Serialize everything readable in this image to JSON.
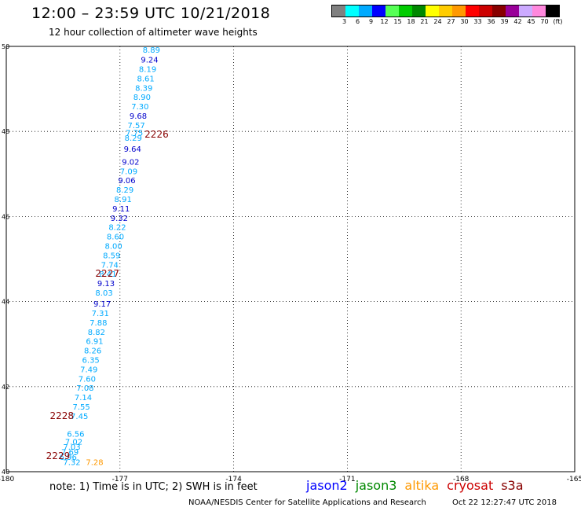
{
  "header": {
    "title": "12:00 – 23:59 UTC 10/21/2018",
    "subtitle": "12 hour collection of altimeter wave heights"
  },
  "legend": {
    "swatches": [
      "#808080",
      "#00ffff",
      "#00aaff",
      "#0000ff",
      "#55ff55",
      "#00cc00",
      "#008800",
      "#ffff00",
      "#ffcc00",
      "#ff9900",
      "#ff0000",
      "#cc0000",
      "#880000",
      "#990099",
      "#ccaaff",
      "#ff88dd",
      "#000000"
    ],
    "labels": [
      "3",
      "6",
      "9",
      "12",
      "15",
      "18",
      "21",
      "24",
      "27",
      "30",
      "33",
      "36",
      "39",
      "42",
      "45",
      "70",
      "(ft)"
    ]
  },
  "map": {
    "lon_range": [
      -180,
      -165
    ],
    "lat_range": [
      40,
      50
    ],
    "lon_ticks": [
      "-180",
      "-177",
      "-174",
      "-171",
      "-168",
      "-165"
    ],
    "lat_ticks": [
      "50",
      "48",
      "46",
      "44",
      "42",
      "40"
    ],
    "gridlines": true
  },
  "measurements": [
    {
      "v": "8.89",
      "c": "#00aaff",
      "lon": -176.4,
      "lat": 49.85
    },
    {
      "v": "9.24",
      "c": "#0000cc",
      "lon": -176.45,
      "lat": 49.62
    },
    {
      "v": "8.19",
      "c": "#00aaff",
      "lon": -176.5,
      "lat": 49.4
    },
    {
      "v": "8.61",
      "c": "#00aaff",
      "lon": -176.55,
      "lat": 49.18
    },
    {
      "v": "8.39",
      "c": "#00aaff",
      "lon": -176.6,
      "lat": 48.96
    },
    {
      "v": "8.90",
      "c": "#00aaff",
      "lon": -176.65,
      "lat": 48.74
    },
    {
      "v": "7.30",
      "c": "#00aaff",
      "lon": -176.7,
      "lat": 48.52
    },
    {
      "v": "9.68",
      "c": "#0000cc",
      "lon": -176.75,
      "lat": 48.3
    },
    {
      "v": "7.57",
      "c": "#00aaff",
      "lon": -176.8,
      "lat": 48.08
    },
    {
      "v": "7.75",
      "c": "#00aaff",
      "lon": -176.85,
      "lat": 47.9
    },
    {
      "v": "8.29",
      "c": "#00aaff",
      "lon": -176.88,
      "lat": 47.78
    },
    {
      "v": "9.64",
      "c": "#0000cc",
      "lon": -176.9,
      "lat": 47.52
    },
    {
      "v": "9.02",
      "c": "#0000cc",
      "lon": -176.95,
      "lat": 47.22
    },
    {
      "v": "7.09",
      "c": "#00aaff",
      "lon": -177.0,
      "lat": 47.0
    },
    {
      "v": "9.06",
      "c": "#0000cc",
      "lon": -177.05,
      "lat": 46.78
    },
    {
      "v": "8.29",
      "c": "#00aaff",
      "lon": -177.1,
      "lat": 46.56
    },
    {
      "v": "8.91",
      "c": "#00aaff",
      "lon": -177.15,
      "lat": 46.34
    },
    {
      "v": "9.11",
      "c": "#0000cc",
      "lon": -177.2,
      "lat": 46.12
    },
    {
      "v": "9.32",
      "c": "#0000cc",
      "lon": -177.25,
      "lat": 45.9
    },
    {
      "v": "8.22",
      "c": "#00aaff",
      "lon": -177.3,
      "lat": 45.68
    },
    {
      "v": "8.60",
      "c": "#00aaff",
      "lon": -177.35,
      "lat": 45.46
    },
    {
      "v": "8.00",
      "c": "#00aaff",
      "lon": -177.4,
      "lat": 45.24
    },
    {
      "v": "8.59",
      "c": "#00aaff",
      "lon": -177.45,
      "lat": 45.02
    },
    {
      "v": "7.74",
      "c": "#00aaff",
      "lon": -177.5,
      "lat": 44.8
    },
    {
      "v": "8.41",
      "c": "#00aaff",
      "lon": -177.55,
      "lat": 44.58
    },
    {
      "v": "9.13",
      "c": "#0000cc",
      "lon": -177.6,
      "lat": 44.36
    },
    {
      "v": "8.03",
      "c": "#00aaff",
      "lon": -177.65,
      "lat": 44.14
    },
    {
      "v": "9.17",
      "c": "#0000cc",
      "lon": -177.7,
      "lat": 43.88
    },
    {
      "v": "7.31",
      "c": "#00aaff",
      "lon": -177.75,
      "lat": 43.66
    },
    {
      "v": "7.88",
      "c": "#00aaff",
      "lon": -177.8,
      "lat": 43.44
    },
    {
      "v": "8.82",
      "c": "#00aaff",
      "lon": -177.85,
      "lat": 43.22
    },
    {
      "v": "6.91",
      "c": "#00aaff",
      "lon": -177.9,
      "lat": 43.0
    },
    {
      "v": "8.26",
      "c": "#00aaff",
      "lon": -177.95,
      "lat": 42.78
    },
    {
      "v": "6.35",
      "c": "#00aaff",
      "lon": -178.0,
      "lat": 42.56
    },
    {
      "v": "7.49",
      "c": "#00aaff",
      "lon": -178.05,
      "lat": 42.34
    },
    {
      "v": "7.60",
      "c": "#00aaff",
      "lon": -178.1,
      "lat": 42.12
    },
    {
      "v": "7.08",
      "c": "#00aaff",
      "lon": -178.15,
      "lat": 41.9
    },
    {
      "v": "7.14",
      "c": "#00aaff",
      "lon": -178.2,
      "lat": 41.68
    },
    {
      "v": "7.55",
      "c": "#00aaff",
      "lon": -178.25,
      "lat": 41.46
    },
    {
      "v": "7.45",
      "c": "#00aaff",
      "lon": -178.3,
      "lat": 41.24
    },
    {
      "v": "6.56",
      "c": "#00aaff",
      "lon": -178.4,
      "lat": 40.82
    },
    {
      "v": "7.02",
      "c": "#00aaff",
      "lon": -178.45,
      "lat": 40.64
    },
    {
      "v": "7.03",
      "c": "#00aaff",
      "lon": -178.5,
      "lat": 40.52
    },
    {
      "v": "7.69",
      "c": "#00aaff",
      "lon": -178.55,
      "lat": 40.4
    },
    {
      "v": "6.96",
      "c": "#00aaff",
      "lon": -178.6,
      "lat": 40.28
    },
    {
      "v": "7.32",
      "c": "#00aaff",
      "lon": -178.5,
      "lat": 40.16
    },
    {
      "v": "7.28",
      "c": "#ff9900",
      "lon": -177.9,
      "lat": 40.16
    }
  ],
  "time_labels": [
    {
      "v": "2226",
      "lon": -176.35,
      "lat": 47.86
    },
    {
      "v": "2227",
      "lon": -177.65,
      "lat": 44.58
    },
    {
      "v": "2228",
      "lon": -178.85,
      "lat": 41.24
    },
    {
      "v": "2229",
      "lon": -178.95,
      "lat": 40.3
    }
  ],
  "note": "note:  1) Time is in UTC;  2) SWH is in feet",
  "satellites": [
    {
      "name": "jason2",
      "color": "#0000ff"
    },
    {
      "name": "jason3",
      "color": "#008800"
    },
    {
      "name": "altika",
      "color": "#ff9900"
    },
    {
      "name": "cryosat",
      "color": "#cc0000"
    },
    {
      "name": "s3a",
      "color": "#880000"
    }
  ],
  "footer": {
    "source": "NOAA/NESDIS Center for Satellite Applications and Research",
    "timestamp": "Oct 22 12:27:47 UTC 2018"
  }
}
